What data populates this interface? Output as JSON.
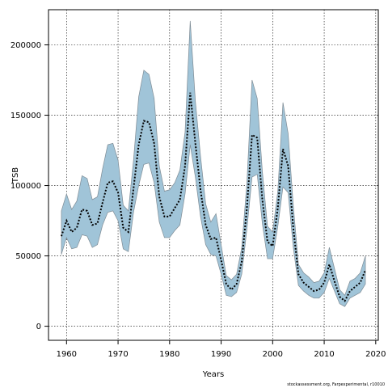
{
  "chart_data": {
    "type": "area",
    "title": "",
    "xlabel": "Years",
    "ylabel": "TSB",
    "xlim": [
      1956.5,
      2020.5
    ],
    "ylim": [
      -10000,
      225000
    ],
    "x_ticks": [
      1960,
      1970,
      1980,
      1990,
      2000,
      2010,
      2020
    ],
    "y_ticks": [
      0,
      50000,
      100000,
      150000,
      200000
    ],
    "grid": true,
    "legend": "none",
    "colors": {
      "band_fill": "#a0c4d8",
      "band_edge": "#7f8c95",
      "line": "#000000"
    },
    "x": [
      1959,
      1960,
      1961,
      1962,
      1963,
      1964,
      1965,
      1966,
      1967,
      1968,
      1969,
      1970,
      1971,
      1972,
      1973,
      1974,
      1975,
      1976,
      1977,
      1978,
      1979,
      1980,
      1981,
      1982,
      1983,
      1984,
      1985,
      1986,
      1987,
      1988,
      1989,
      1990,
      1991,
      1992,
      1993,
      1994,
      1995,
      1996,
      1997,
      1998,
      1999,
      2000,
      2001,
      2002,
      2003,
      2004,
      2005,
      2006,
      2007,
      2008,
      2009,
      2010,
      2011,
      2012,
      2013,
      2014,
      2015,
      2016,
      2017,
      2018
    ],
    "series": [
      {
        "values": [
          64000,
          75000,
          67000,
          70000,
          83000,
          82000,
          72000,
          73000,
          88000,
          102000,
          103000,
          95000,
          70000,
          67000,
          98000,
          129000,
          146000,
          145000,
          130000,
          92000,
          78000,
          78000,
          84000,
          90000,
          114000,
          166000,
          130000,
          97000,
          72000,
          62000,
          63000,
          47000,
          30000,
          26000,
          30000,
          46000,
          84000,
          136000,
          134000,
          90000,
          60000,
          57000,
          84000,
          126000,
          114000,
          70000,
          37000,
          31000,
          28000,
          25000,
          26000,
          31000,
          44000,
          32000,
          21000,
          18000,
          25000,
          28000,
          31000,
          40000
        ],
        "lower": [
          51000,
          63000,
          55000,
          56000,
          65000,
          64000,
          56000,
          58000,
          72000,
          81000,
          82000,
          75000,
          55000,
          53000,
          81000,
          100000,
          115000,
          116000,
          102000,
          74000,
          63000,
          63000,
          68000,
          72000,
          94000,
          129000,
          106000,
          78000,
          58000,
          51000,
          50000,
          37000,
          22000,
          21000,
          24000,
          37000,
          69000,
          106000,
          108000,
          73000,
          48000,
          48000,
          71000,
          99000,
          95000,
          56000,
          29000,
          25000,
          22000,
          20000,
          20000,
          24000,
          34000,
          25000,
          16000,
          14000,
          20000,
          22000,
          24000,
          30000
        ],
        "upper": [
          82000,
          94000,
          83000,
          89000,
          107000,
          105000,
          90000,
          92000,
          112000,
          129000,
          130000,
          118000,
          86000,
          82000,
          118000,
          163000,
          182000,
          179000,
          162000,
          114000,
          96000,
          97000,
          102000,
          111000,
          138000,
          217000,
          160000,
          121000,
          87000,
          74000,
          80000,
          58000,
          36000,
          33000,
          37000,
          56000,
          102000,
          175000,
          162000,
          110000,
          71000,
          67000,
          96000,
          159000,
          137000,
          86000,
          44000,
          38000,
          35000,
          31000,
          32000,
          38000,
          56000,
          41000,
          26000,
          22000,
          32000,
          34000,
          38000,
          50000
        ]
      }
    ],
    "footer_text": "stockassessment.org, Farpexperimental, r10010"
  }
}
